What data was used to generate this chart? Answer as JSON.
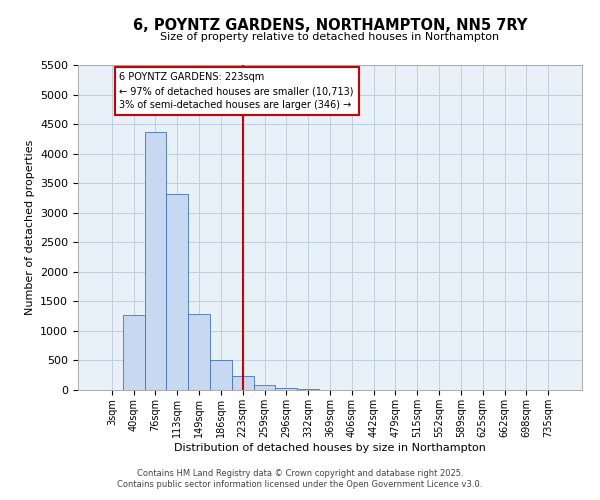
{
  "title": "6, POYNTZ GARDENS, NORTHAMPTON, NN5 7RY",
  "subtitle": "Size of property relative to detached houses in Northampton",
  "xlabel": "Distribution of detached houses by size in Northampton",
  "ylabel": "Number of detached properties",
  "bin_labels": [
    "3sqm",
    "40sqm",
    "76sqm",
    "113sqm",
    "149sqm",
    "186sqm",
    "223sqm",
    "259sqm",
    "296sqm",
    "332sqm",
    "369sqm",
    "406sqm",
    "442sqm",
    "479sqm",
    "515sqm",
    "552sqm",
    "589sqm",
    "625sqm",
    "662sqm",
    "698sqm",
    "735sqm"
  ],
  "bar_values": [
    0,
    1270,
    4370,
    3310,
    1280,
    510,
    230,
    90,
    40,
    10,
    0,
    0,
    0,
    0,
    0,
    0,
    0,
    0,
    0,
    0,
    0
  ],
  "bar_color": "#c6d9f1",
  "bar_edge_color": "#4472c4",
  "vline_x_idx": 6,
  "vline_color": "#cc0000",
  "annotation_title": "6 POYNTZ GARDENS: 223sqm",
  "annotation_line1": "← 97% of detached houses are smaller (10,713)",
  "annotation_line2": "3% of semi-detached houses are larger (346) →",
  "annotation_box_color": "#cc0000",
  "ylim": [
    0,
    5500
  ],
  "yticks": [
    0,
    500,
    1000,
    1500,
    2000,
    2500,
    3000,
    3500,
    4000,
    4500,
    5000,
    5500
  ],
  "footnote1": "Contains HM Land Registry data © Crown copyright and database right 2025.",
  "footnote2": "Contains public sector information licensed under the Open Government Licence v3.0.",
  "background_color": "#ffffff",
  "plot_bg_color": "#e8f0f8",
  "grid_color": "#c0d0e0"
}
